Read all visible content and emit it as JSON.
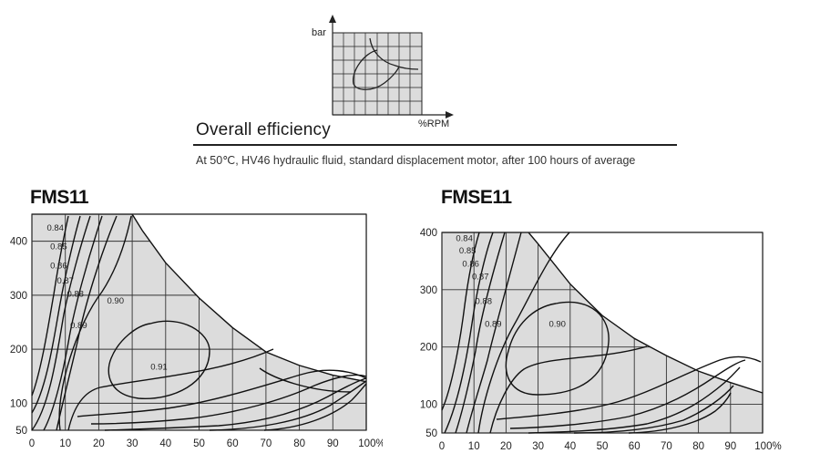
{
  "header": {
    "icon_ylabel": "bar",
    "icon_xlabel": "%RPM",
    "title": "Overall efficiency",
    "subtitle": "At 50℃, HV46 hydraulic fluid, standard displacement motor, after 100 hours of average"
  },
  "chart_data": [
    {
      "type": "contour",
      "title": "FMS11",
      "xlabel": "%RPM",
      "ylabel": "bar",
      "xlim": [
        0,
        100
      ],
      "ylim": [
        50,
        450
      ],
      "x_ticks": [
        "0",
        "10",
        "20",
        "30",
        "40",
        "50",
        "60",
        "70",
        "80",
        "90",
        "100%"
      ],
      "y_ticks": [
        {
          "value": 50,
          "label": "50"
        },
        {
          "value": 100,
          "label": "100"
        },
        {
          "value": 200,
          "label": "200"
        },
        {
          "value": 300,
          "label": "300"
        },
        {
          "value": 400,
          "label": "400"
        }
      ],
      "contour_labels": [
        {
          "text": "0.84",
          "x": 7,
          "y": 425
        },
        {
          "text": "0.85",
          "x": 8,
          "y": 390
        },
        {
          "text": "0.86",
          "x": 8,
          "y": 355
        },
        {
          "text": "0.87",
          "x": 10,
          "y": 327
        },
        {
          "text": "0.88",
          "x": 13,
          "y": 302
        },
        {
          "text": "0.89",
          "x": 14,
          "y": 244
        },
        {
          "text": "0.90",
          "x": 25,
          "y": 290
        },
        {
          "text": "0.91",
          "x": 38,
          "y": 167
        }
      ],
      "envelope": [
        [
          30,
          450
        ],
        [
          33,
          420
        ],
        [
          40,
          360
        ],
        [
          50,
          295
        ],
        [
          60,
          240
        ],
        [
          70,
          195
        ],
        [
          80,
          170
        ],
        [
          90,
          152
        ],
        [
          100,
          140
        ]
      ]
    },
    {
      "type": "contour",
      "title": "FMSE11",
      "xlabel": "%RPM",
      "ylabel": "bar",
      "xlim": [
        0,
        100
      ],
      "ylim": [
        50,
        400
      ],
      "x_ticks": [
        "0",
        "10",
        "20",
        "30",
        "40",
        "50",
        "60",
        "70",
        "80",
        "90",
        "100%"
      ],
      "y_ticks": [
        {
          "value": 50,
          "label": "50"
        },
        {
          "value": 100,
          "label": "100"
        },
        {
          "value": 200,
          "label": "200"
        },
        {
          "value": 300,
          "label": "300"
        },
        {
          "value": 400,
          "label": "400"
        }
      ],
      "contour_labels": [
        {
          "text": "0.84",
          "x": 7,
          "y": 390
        },
        {
          "text": "0.85",
          "x": 8,
          "y": 368
        },
        {
          "text": "0.86",
          "x": 9,
          "y": 345
        },
        {
          "text": "0.87",
          "x": 12,
          "y": 323
        },
        {
          "text": "0.88",
          "x": 13,
          "y": 280
        },
        {
          "text": "0.89",
          "x": 16,
          "y": 240
        },
        {
          "text": "0.90",
          "x": 36,
          "y": 240
        }
      ],
      "envelope": [
        [
          27,
          400
        ],
        [
          30,
          380
        ],
        [
          40,
          310
        ],
        [
          50,
          255
        ],
        [
          60,
          215
        ],
        [
          70,
          185
        ],
        [
          80,
          158
        ],
        [
          90,
          138
        ],
        [
          100,
          120
        ]
      ]
    }
  ]
}
